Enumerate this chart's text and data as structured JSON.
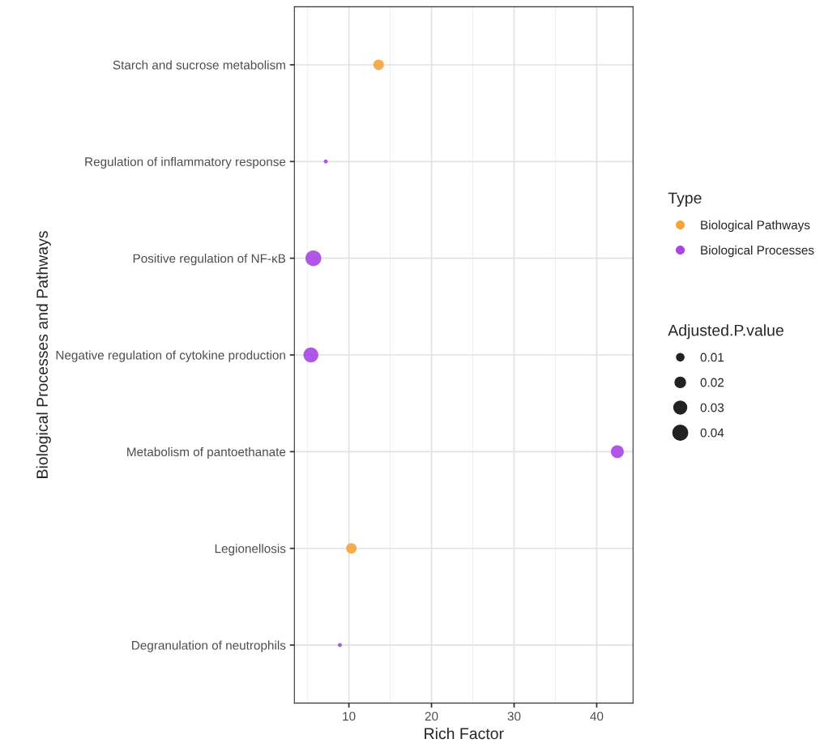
{
  "chart_data": {
    "type": "bubble",
    "orientation": "horizontal",
    "xlabel": "Rich Factor",
    "ylabel": "Biological Processes and Pathways",
    "legend_title": "Type",
    "legend": "right",
    "grid": true,
    "categories": [
      "Starch and sucrose metabolism",
      "Regulation of inflammatory response",
      "Positive regulation of NF-κB",
      "Negative regulation of cytokine production",
      "Metabolism of pantoethanate",
      "Legionellosis",
      "Degranulation of neutrophils"
    ],
    "series": [
      {
        "name": "Biological Pathways",
        "color": "#f5a43a",
        "values": [
          13.6,
          null,
          null,
          null,
          null,
          10.3,
          null
        ],
        "sizes": [
          0.02,
          null,
          null,
          null,
          null,
          0.02,
          null
        ]
      },
      {
        "name": "Biological Processes",
        "color": "#a845e6",
        "values": [
          null,
          7.2,
          5.7,
          5.4,
          42.5,
          null,
          8.9
        ],
        "sizes": [
          null,
          0.003,
          0.045,
          0.04,
          0.03,
          null,
          0.003
        ]
      }
    ],
    "size_legend": [
      0.01,
      0.02,
      0.03,
      0.04
    ],
    "annotations": [
      "Adjusted.P.value"
    ],
    "xlim": [
      3.4,
      44.4
    ],
    "xticks": [
      10,
      20,
      30,
      40
    ]
  }
}
